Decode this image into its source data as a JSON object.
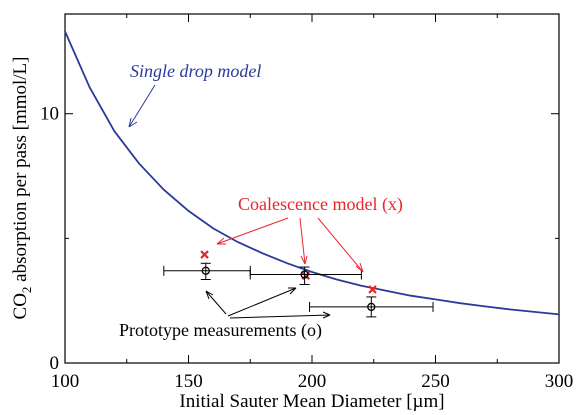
{
  "chart_data": {
    "type": "scatter",
    "xlabel": "Initial Sauter Mean Diameter [µm]",
    "ylabel_parts": {
      "prefix": "CO",
      "subscript": "2",
      "suffix": " absorption per pass [mmol/L]"
    },
    "xlim": [
      100,
      300
    ],
    "ylim": [
      0,
      14
    ],
    "x_ticks": [
      100,
      150,
      200,
      250,
      300
    ],
    "y_ticks": [
      0,
      10
    ],
    "grid": false,
    "series": [
      {
        "name": "Single drop model",
        "kind": "line",
        "color": "#2b3a9a",
        "x": [
          100,
          110,
          120,
          130,
          140,
          150,
          160,
          170,
          180,
          190,
          200,
          210,
          220,
          230,
          240,
          250,
          260,
          270,
          280,
          290,
          300
        ],
        "y": [
          13.3,
          11.05,
          9.3,
          8.0,
          6.95,
          6.1,
          5.4,
          4.85,
          4.4,
          4.0,
          3.65,
          3.35,
          3.1,
          2.9,
          2.7,
          2.55,
          2.4,
          2.27,
          2.15,
          2.05,
          1.95
        ]
      },
      {
        "name": "Coalescence model (x)",
        "kind": "markers",
        "marker": "x",
        "color": "#e8262a",
        "x": [
          156.5,
          197.5,
          224.5
        ],
        "y": [
          4.35,
          3.5,
          2.95
        ]
      },
      {
        "name": "Prototype measurements (o)",
        "kind": "markers",
        "marker": "o",
        "color": "#000000",
        "x": [
          157,
          197,
          224
        ],
        "y": [
          3.7,
          3.55,
          2.25
        ],
        "x_err": [
          [
            140,
            175
          ],
          [
            175,
            220
          ],
          [
            199,
            249
          ]
        ],
        "y_err": [
          [
            3.35,
            4.0
          ],
          [
            3.15,
            3.85
          ],
          [
            1.85,
            2.65
          ]
        ]
      }
    ],
    "annotations": [
      {
        "text": "Single drop model",
        "color": "#2b3a9a",
        "style": "italic",
        "series": "Single drop model"
      },
      {
        "text": "Coalescence model (x)",
        "color": "#e8262a",
        "style": "normal",
        "series": "Coalescence model (x)"
      },
      {
        "text": "Prototype measurements (o)",
        "color": "#000000",
        "style": "normal",
        "series": "Prototype measurements (o)"
      }
    ]
  }
}
